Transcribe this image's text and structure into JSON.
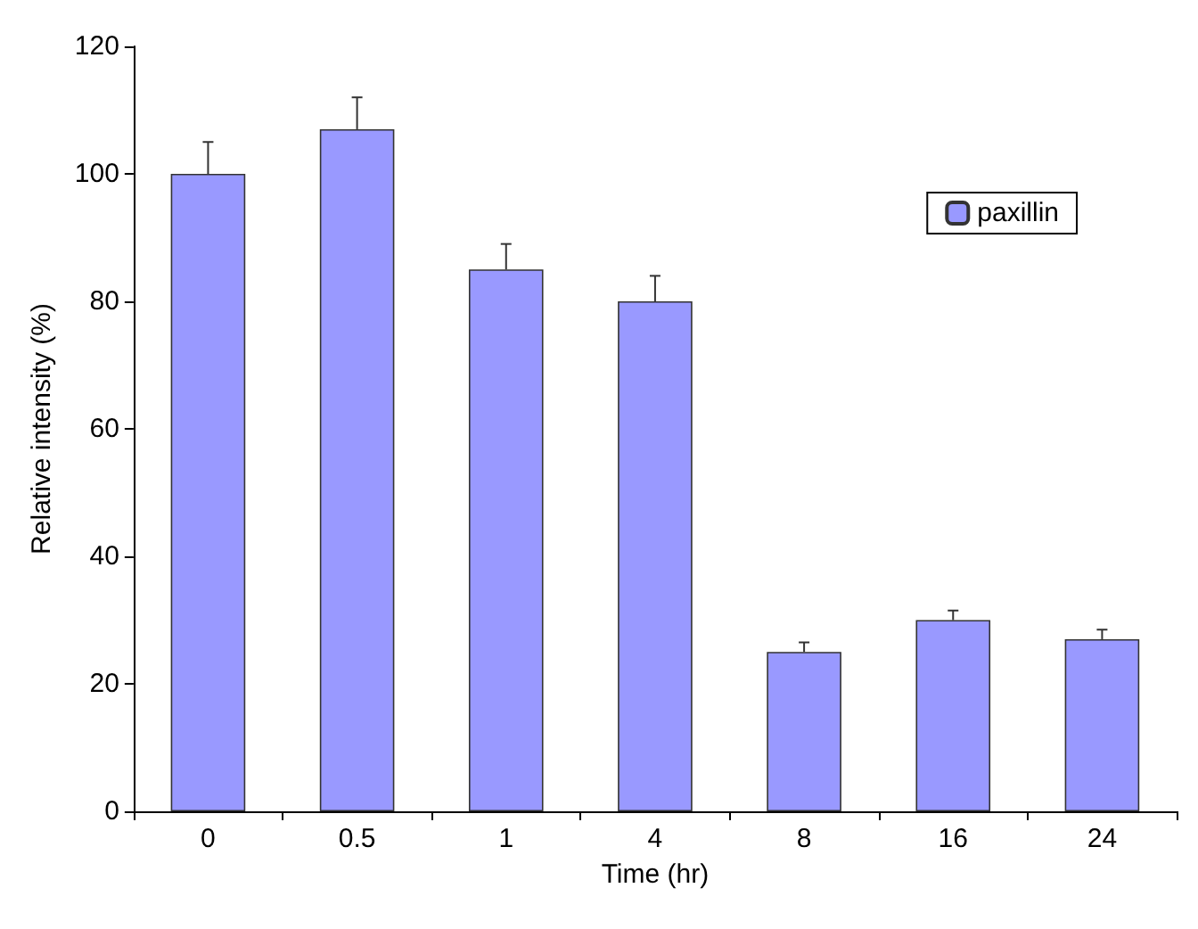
{
  "chart_data": {
    "type": "bar",
    "xlabel": "Time (hr)",
    "ylabel": "Relative intensity (%)",
    "categories": [
      "0",
      "0.5",
      "1",
      "4",
      "8",
      "16",
      "24"
    ],
    "series": [
      {
        "name": "paxillin",
        "color": "#9999ff",
        "values": [
          100,
          107,
          85,
          80,
          25,
          30,
          27
        ],
        "errors": [
          [
            100,
            105
          ],
          [
            107,
            112
          ],
          [
            85,
            89
          ],
          [
            80,
            84
          ],
          [
            25,
            26.5
          ],
          [
            30,
            31.5
          ],
          [
            27,
            28.5
          ]
        ]
      }
    ],
    "ylim": [
      0,
      120
    ],
    "yticks": [
      0,
      20,
      40,
      60,
      80,
      100,
      120
    ],
    "grid": false,
    "legend": "top right"
  }
}
